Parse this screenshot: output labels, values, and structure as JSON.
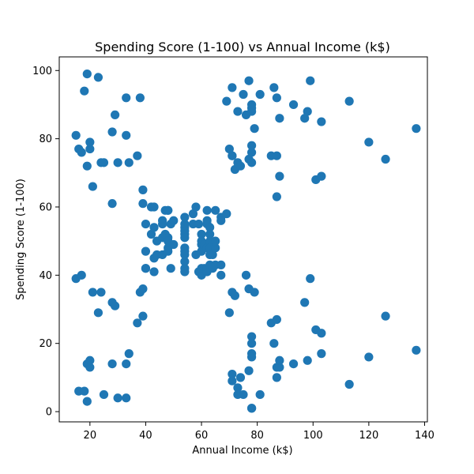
{
  "chart_data": {
    "type": "scatter",
    "title": "Spending Score (1-100) vs Annual Income (k$)",
    "xlabel": "Annual Income (k$)",
    "ylabel": "Spending Score (1-100)",
    "xlim": [
      9,
      141
    ],
    "ylim": [
      -3,
      104
    ],
    "xticks": [
      20,
      40,
      60,
      80,
      100,
      120,
      140
    ],
    "yticks": [
      0,
      20,
      40,
      60,
      80,
      100
    ],
    "grid": false,
    "legend": "none",
    "point_color": "#1f77b4",
    "points": [
      [
        15,
        39
      ],
      [
        15,
        81
      ],
      [
        16,
        6
      ],
      [
        16,
        77
      ],
      [
        17,
        40
      ],
      [
        17,
        76
      ],
      [
        18,
        6
      ],
      [
        18,
        94
      ],
      [
        19,
        3
      ],
      [
        19,
        72
      ],
      [
        19,
        14
      ],
      [
        19,
        99
      ],
      [
        20,
        15
      ],
      [
        20,
        77
      ],
      [
        20,
        13
      ],
      [
        20,
        79
      ],
      [
        21,
        35
      ],
      [
        21,
        66
      ],
      [
        23,
        29
      ],
      [
        23,
        98
      ],
      [
        24,
        35
      ],
      [
        24,
        73
      ],
      [
        25,
        5
      ],
      [
        25,
        73
      ],
      [
        28,
        14
      ],
      [
        28,
        82
      ],
      [
        28,
        32
      ],
      [
        28,
        61
      ],
      [
        29,
        31
      ],
      [
        29,
        87
      ],
      [
        30,
        4
      ],
      [
        30,
        73
      ],
      [
        33,
        4
      ],
      [
        33,
        92
      ],
      [
        33,
        14
      ],
      [
        33,
        81
      ],
      [
        34,
        17
      ],
      [
        34,
        73
      ],
      [
        37,
        26
      ],
      [
        37,
        75
      ],
      [
        38,
        35
      ],
      [
        38,
        92
      ],
      [
        39,
        36
      ],
      [
        39,
        61
      ],
      [
        39,
        28
      ],
      [
        39,
        65
      ],
      [
        40,
        55
      ],
      [
        40,
        47
      ],
      [
        40,
        42
      ],
      [
        40,
        42
      ],
      [
        42,
        52
      ],
      [
        42,
        60
      ],
      [
        43,
        54
      ],
      [
        43,
        60
      ],
      [
        43,
        45
      ],
      [
        43,
        41
      ],
      [
        44,
        50
      ],
      [
        44,
        46
      ],
      [
        46,
        51
      ],
      [
        46,
        46
      ],
      [
        46,
        56
      ],
      [
        46,
        55
      ],
      [
        47,
        52
      ],
      [
        47,
        59
      ],
      [
        48,
        51
      ],
      [
        48,
        59
      ],
      [
        48,
        50
      ],
      [
        48,
        48
      ],
      [
        48,
        59
      ],
      [
        48,
        47
      ],
      [
        49,
        55
      ],
      [
        49,
        42
      ],
      [
        50,
        49
      ],
      [
        50,
        56
      ],
      [
        54,
        47
      ],
      [
        54,
        54
      ],
      [
        54,
        53
      ],
      [
        54,
        48
      ],
      [
        54,
        52
      ],
      [
        54,
        42
      ],
      [
        54,
        51
      ],
      [
        54,
        55
      ],
      [
        54,
        41
      ],
      [
        54,
        44
      ],
      [
        54,
        57
      ],
      [
        54,
        46
      ],
      [
        57,
        58
      ],
      [
        57,
        55
      ],
      [
        58,
        60
      ],
      [
        58,
        46
      ],
      [
        59,
        55
      ],
      [
        59,
        41
      ],
      [
        60,
        49
      ],
      [
        60,
        40
      ],
      [
        60,
        42
      ],
      [
        60,
        52
      ],
      [
        60,
        47
      ],
      [
        60,
        50
      ],
      [
        61,
        42
      ],
      [
        61,
        49
      ],
      [
        62,
        41
      ],
      [
        62,
        48
      ],
      [
        62,
        59
      ],
      [
        62,
        55
      ],
      [
        62,
        56
      ],
      [
        62,
        42
      ],
      [
        63,
        50
      ],
      [
        63,
        46
      ],
      [
        63,
        43
      ],
      [
        63,
        48
      ],
      [
        63,
        52
      ],
      [
        63,
        54
      ],
      [
        64,
        42
      ],
      [
        64,
        46
      ],
      [
        65,
        48
      ],
      [
        65,
        50
      ],
      [
        65,
        43
      ],
      [
        65,
        59
      ],
      [
        67,
        43
      ],
      [
        67,
        57
      ],
      [
        67,
        56
      ],
      [
        67,
        40
      ],
      [
        69,
        58
      ],
      [
        69,
        91
      ],
      [
        70,
        29
      ],
      [
        70,
        77
      ],
      [
        71,
        35
      ],
      [
        71,
        95
      ],
      [
        71,
        11
      ],
      [
        71,
        75
      ],
      [
        71,
        9
      ],
      [
        71,
        75
      ],
      [
        72,
        34
      ],
      [
        72,
        71
      ],
      [
        73,
        5
      ],
      [
        73,
        88
      ],
      [
        73,
        7
      ],
      [
        73,
        73
      ],
      [
        74,
        10
      ],
      [
        74,
        72
      ],
      [
        75,
        5
      ],
      [
        75,
        93
      ],
      [
        76,
        40
      ],
      [
        76,
        87
      ],
      [
        77,
        12
      ],
      [
        77,
        97
      ],
      [
        77,
        36
      ],
      [
        77,
        74
      ],
      [
        78,
        22
      ],
      [
        78,
        90
      ],
      [
        78,
        17
      ],
      [
        78,
        88
      ],
      [
        78,
        20
      ],
      [
        78,
        76
      ],
      [
        78,
        16
      ],
      [
        78,
        89
      ],
      [
        78,
        1
      ],
      [
        78,
        78
      ],
      [
        78,
        1
      ],
      [
        78,
        73
      ],
      [
        79,
        35
      ],
      [
        79,
        83
      ],
      [
        81,
        5
      ],
      [
        81,
        93
      ],
      [
        85,
        26
      ],
      [
        85,
        75
      ],
      [
        86,
        20
      ],
      [
        86,
        95
      ],
      [
        87,
        27
      ],
      [
        87,
        63
      ],
      [
        87,
        13
      ],
      [
        87,
        75
      ],
      [
        87,
        10
      ],
      [
        87,
        92
      ],
      [
        88,
        13
      ],
      [
        88,
        86
      ],
      [
        88,
        15
      ],
      [
        88,
        69
      ],
      [
        93,
        14
      ],
      [
        93,
        90
      ],
      [
        97,
        32
      ],
      [
        97,
        86
      ],
      [
        98,
        15
      ],
      [
        98,
        88
      ],
      [
        99,
        39
      ],
      [
        99,
        97
      ],
      [
        101,
        24
      ],
      [
        101,
        68
      ],
      [
        103,
        17
      ],
      [
        103,
        85
      ],
      [
        103,
        23
      ],
      [
        103,
        69
      ],
      [
        113,
        8
      ],
      [
        113,
        91
      ],
      [
        120,
        16
      ],
      [
        120,
        79
      ],
      [
        126,
        28
      ],
      [
        126,
        74
      ],
      [
        137,
        18
      ],
      [
        137,
        83
      ]
    ]
  }
}
